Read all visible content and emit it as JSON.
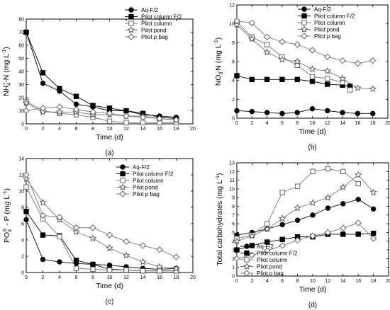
{
  "chart_data": [
    {
      "type": "line",
      "panel_label": "(a)",
      "xlabel": "Time (d)",
      "ylabel": "NH4+-N (mg L-1)",
      "ylabel_parts": {
        "base": "NH",
        "sub": "4",
        "sup": "+",
        "rest": "-N (mg L",
        "unit_sup": "-1",
        "end": ")"
      },
      "xlim": [
        0,
        20
      ],
      "ylim": [
        0,
        80
      ],
      "xticks": [
        0,
        2,
        4,
        6,
        8,
        10,
        12,
        14,
        16,
        18,
        20
      ],
      "yticks": [
        0,
        10,
        20,
        30,
        40,
        50,
        60,
        70,
        80
      ],
      "legend_position": "top-right",
      "series": [
        {
          "name": "Aq-F/2",
          "marker": "circle",
          "x": [
            0,
            2,
            4,
            6,
            8,
            10,
            12,
            14,
            16,
            18
          ],
          "y": [
            70,
            31,
            25,
            15,
            13,
            10,
            10,
            7,
            6,
            5
          ]
        },
        {
          "name": "Pilot column F/2",
          "marker": "square",
          "x": [
            0,
            2,
            4,
            6,
            8,
            10,
            12,
            14,
            16,
            18
          ],
          "y": [
            70,
            39,
            27,
            21,
            14,
            12,
            10,
            8,
            5,
            4
          ]
        },
        {
          "name": "Pilot column",
          "marker": "open-square",
          "x": [
            0,
            2,
            4,
            6,
            8,
            10,
            12,
            14,
            16,
            18
          ],
          "y": [
            17,
            10,
            8,
            7,
            5,
            2,
            1,
            1,
            1,
            1
          ]
        },
        {
          "name": "Pilot pond",
          "marker": "open-star",
          "x": [
            0,
            2,
            4,
            6,
            8,
            10,
            12,
            14,
            16,
            18
          ],
          "y": [
            16,
            9,
            9,
            9,
            7,
            7,
            6,
            6,
            4,
            3
          ]
        },
        {
          "name": "Pilot p bag",
          "marker": "open-diamond",
          "x": [
            0,
            2,
            4,
            6,
            8,
            10,
            12,
            14,
            16,
            18
          ],
          "y": [
            10,
            12,
            13,
            11,
            9,
            8,
            6,
            5,
            4,
            3
          ]
        }
      ]
    },
    {
      "type": "line",
      "panel_label": "(b)",
      "xlabel": "Time (d)",
      "ylabel": "NO3--N (mg L-1)",
      "ylabel_parts": {
        "base": "NO",
        "sub": "3",
        "sup": "-",
        "rest": "-N (mg L",
        "unit_sup": "-1",
        "end": ")"
      },
      "xlim": [
        0,
        20
      ],
      "ylim": [
        0,
        12
      ],
      "xticks": [
        0,
        2,
        4,
        6,
        8,
        10,
        12,
        14,
        16,
        18,
        20
      ],
      "yticks": [
        0,
        2,
        4,
        6,
        8,
        10,
        12
      ],
      "legend_position": "top-right",
      "series": [
        {
          "name": "Aq-F/2",
          "marker": "circle",
          "x": [
            0,
            2,
            4,
            6,
            8,
            10,
            12,
            14,
            16,
            18
          ],
          "y": [
            0.8,
            0.7,
            0.6,
            0.5,
            0.6,
            1.0,
            0.8,
            0.6,
            0.5,
            0.5
          ]
        },
        {
          "name": "Pilot column F/2",
          "marker": "square",
          "x": [
            0,
            2,
            4,
            6,
            8,
            10,
            12,
            14,
            15
          ],
          "y": [
            4.5,
            4.1,
            4.1,
            4.1,
            4.1,
            3.9,
            3.6,
            3.5,
            3.4
          ]
        },
        {
          "name": "Pilot column",
          "marker": "open-square",
          "x": [
            0,
            2,
            4,
            6,
            8,
            10,
            12,
            14,
            15
          ],
          "y": [
            10.2,
            8.6,
            7.8,
            6.5,
            5.6,
            4.4,
            4.2,
            3.8,
            3.0
          ]
        },
        {
          "name": "Pilot pond",
          "marker": "open-star",
          "x": [
            0,
            2,
            4,
            6,
            8,
            10,
            12,
            14,
            16,
            18
          ],
          "y": [
            9.9,
            8.4,
            7.0,
            6.2,
            6.0,
            5.2,
            5.0,
            4.2,
            3.2,
            3.1
          ]
        },
        {
          "name": "Pilot p bag",
          "marker": "open-diamond",
          "x": [
            0,
            2,
            4,
            6,
            8,
            10,
            12,
            14,
            16,
            18
          ],
          "y": [
            10.3,
            10.1,
            8.6,
            8.1,
            7.8,
            7.2,
            6.5,
            6.1,
            5.8,
            6.1
          ]
        }
      ]
    },
    {
      "type": "line",
      "panel_label": "(c)",
      "xlabel": "Time (d)",
      "ylabel": "PO43- - P (mg L-1)",
      "ylabel_parts": {
        "base": "PO",
        "sub": "4",
        "sup": "3-",
        "rest": " - P (mg L",
        "unit_sup": "-1",
        "end": ")"
      },
      "xlim": [
        0,
        20
      ],
      "ylim": [
        0,
        14
      ],
      "xticks": [
        0,
        2,
        4,
        6,
        8,
        10,
        12,
        14,
        16,
        18,
        20
      ],
      "yticks": [
        0,
        2,
        4,
        6,
        8,
        10,
        12,
        14
      ],
      "legend_position": "top-right",
      "series": [
        {
          "name": "Aq-F/2",
          "marker": "circle",
          "x": [
            0,
            2,
            4,
            6,
            8,
            10,
            12,
            14,
            16,
            18
          ],
          "y": [
            6.5,
            1.6,
            1.3,
            1.1,
            1.0,
            0.9,
            0.7,
            0.5,
            0.4,
            0.5
          ]
        },
        {
          "name": "Pilot column F/2",
          "marker": "square",
          "x": [
            0,
            2,
            4,
            6,
            8,
            10,
            12,
            14,
            16,
            18
          ],
          "y": [
            7.5,
            4.6,
            4.5,
            1.5,
            1.0,
            0.4,
            0.3,
            0.2,
            0.2,
            0.2
          ]
        },
        {
          "name": "Pilot column",
          "marker": "open-square",
          "x": [
            0,
            2,
            4,
            6,
            8,
            10,
            12,
            14,
            16,
            18
          ],
          "y": [
            10.5,
            6.6,
            4.4,
            0.5,
            0.4,
            0.3,
            0.3,
            0.2,
            0.2,
            0.2
          ]
        },
        {
          "name": "Pilot pond",
          "marker": "open-star",
          "x": [
            0,
            2,
            4,
            6,
            8,
            10,
            12,
            14,
            16,
            18
          ],
          "y": [
            11.5,
            8.6,
            6.5,
            5.0,
            4.2,
            3.0,
            2.1,
            1.3,
            0.7,
            0.5
          ]
        },
        {
          "name": "Pilot p bag",
          "marker": "open-diamond",
          "x": [
            0,
            2,
            4,
            6,
            8,
            10,
            12,
            14,
            16,
            18
          ],
          "y": [
            12.0,
            7.0,
            6.8,
            5.5,
            5.5,
            4.6,
            3.8,
            3.3,
            2.8,
            1.9
          ]
        }
      ]
    },
    {
      "type": "line",
      "panel_label": "(d)",
      "xlabel": "Time (d)",
      "ylabel": "Total carbohydrates (mg L-1)",
      "ylabel_parts": {
        "base": "Total carbohydrates (mg L",
        "sub": "",
        "sup": "",
        "rest": "",
        "unit_sup": "-1",
        "end": ")"
      },
      "xlim": [
        0,
        20
      ],
      "ylim": [
        0,
        13
      ],
      "xticks": [
        0,
        2,
        4,
        6,
        8,
        10,
        12,
        14,
        16,
        18,
        20
      ],
      "yticks": [
        0,
        1,
        2,
        3,
        4,
        5,
        6,
        7,
        8,
        9,
        10,
        11,
        12,
        13
      ],
      "legend_position": "bottom-left",
      "series": [
        {
          "name": "Aq-F/2",
          "marker": "circle",
          "x": [
            0,
            2,
            4,
            6,
            8,
            10,
            12,
            14,
            16,
            18
          ],
          "y": [
            4.7,
            5.0,
            5.4,
            5.9,
            6.4,
            7.0,
            7.8,
            8.3,
            8.8,
            7.7
          ]
        },
        {
          "name": "Pilot column F/2",
          "marker": "square",
          "x": [
            0,
            2,
            4,
            6,
            8,
            10,
            12,
            14,
            16,
            18
          ],
          "y": [
            3.0,
            3.5,
            3.9,
            4.2,
            4.5,
            4.5,
            4.8,
            4.8,
            4.8,
            4.9
          ]
        },
        {
          "name": "Pilot column",
          "marker": "open-square",
          "x": [
            0,
            2,
            4,
            6,
            8,
            10,
            12,
            14,
            16
          ],
          "y": [
            4.3,
            4.7,
            6.0,
            9.6,
            10.3,
            12.0,
            12.3,
            12.0,
            10.6
          ]
        },
        {
          "name": "Pilot pond",
          "marker": "open-star",
          "x": [
            0,
            2,
            4,
            6,
            8,
            10,
            12,
            14,
            16,
            18
          ],
          "y": [
            4.0,
            4.6,
            5.4,
            6.6,
            7.8,
            8.4,
            9.0,
            10.2,
            11.6,
            9.6
          ]
        },
        {
          "name": "Pilot p bag",
          "marker": "open-diamond",
          "x": [
            0,
            2,
            4,
            6,
            8,
            10,
            12,
            14,
            16,
            18
          ],
          "y": [
            2.0,
            2.4,
            2.9,
            3.5,
            4.1,
            4.6,
            5.0,
            5.5,
            6.1,
            4.3
          ]
        }
      ]
    }
  ]
}
